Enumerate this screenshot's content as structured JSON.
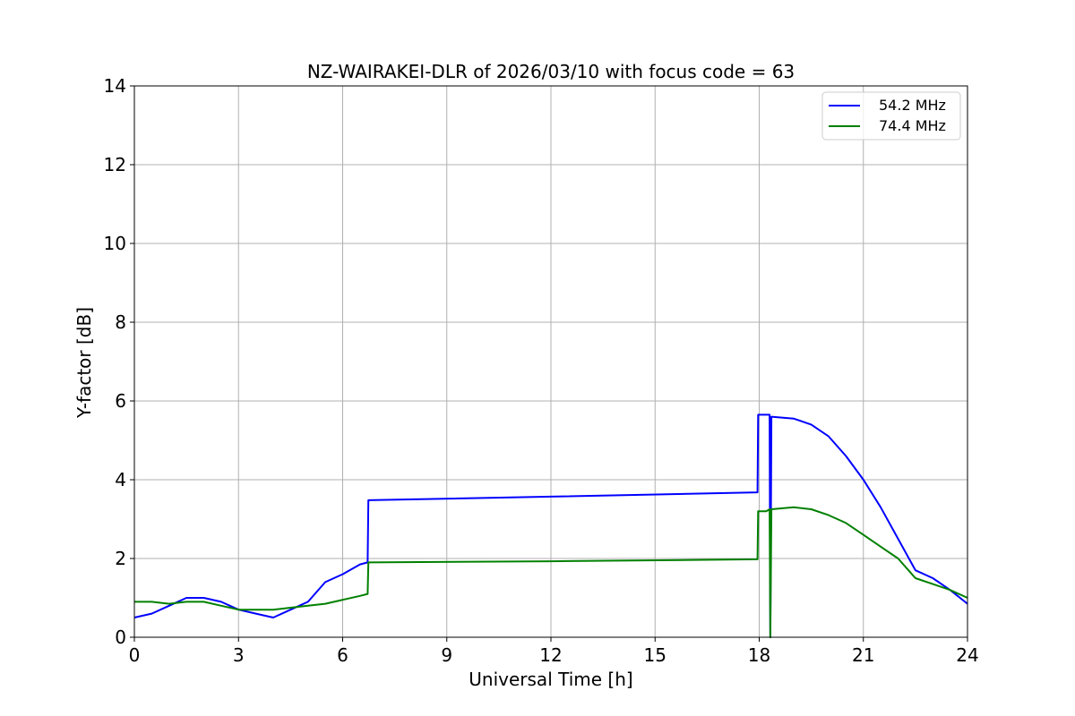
{
  "chart_data": {
    "type": "line",
    "title": "NZ-WAIRAKEI-DLR of 2026/03/10 with focus code = 63",
    "xlabel": "Universal Time [h]",
    "ylabel": "Y-factor [dB]",
    "xlim": [
      0,
      24
    ],
    "ylim": [
      0,
      14
    ],
    "xticks": [
      0,
      3,
      6,
      9,
      12,
      15,
      18,
      21,
      24
    ],
    "yticks": [
      0,
      2,
      4,
      6,
      8,
      10,
      12,
      14
    ],
    "grid": true,
    "legend_position": "top-right",
    "series": [
      {
        "name": "54.2 MHz",
        "color": "#0000ff",
        "x": [
          0.0,
          0.5,
          1.0,
          1.5,
          2.0,
          2.5,
          3.0,
          3.5,
          4.0,
          4.5,
          5.0,
          5.5,
          6.0,
          6.5,
          6.72,
          6.74,
          12.0,
          17.95,
          17.97,
          18.2,
          18.3,
          18.32,
          18.35,
          19.0,
          19.5,
          20.0,
          20.5,
          21.0,
          21.5,
          22.0,
          22.5,
          23.0,
          23.5,
          24.0
        ],
        "y": [
          0.5,
          0.6,
          0.8,
          1.0,
          1.0,
          0.9,
          0.7,
          0.6,
          0.5,
          0.7,
          0.9,
          1.4,
          1.6,
          1.85,
          1.9,
          3.48,
          3.57,
          3.68,
          5.65,
          5.65,
          5.65,
          0.0,
          5.6,
          5.55,
          5.4,
          5.1,
          4.6,
          4.0,
          3.3,
          2.5,
          1.7,
          1.5,
          1.2,
          0.85
        ]
      },
      {
        "name": "74.4 MHz",
        "color": "#008000",
        "x": [
          0.0,
          0.5,
          1.0,
          1.5,
          2.0,
          2.5,
          3.0,
          3.5,
          4.0,
          4.5,
          5.0,
          5.5,
          6.0,
          6.5,
          6.72,
          6.74,
          12.0,
          17.95,
          17.97,
          18.2,
          18.3,
          18.32,
          18.35,
          19.0,
          19.5,
          20.0,
          20.5,
          21.0,
          21.5,
          22.0,
          22.5,
          23.0,
          23.5,
          24.0
        ],
        "y": [
          0.9,
          0.9,
          0.85,
          0.9,
          0.9,
          0.8,
          0.7,
          0.7,
          0.7,
          0.75,
          0.8,
          0.85,
          0.95,
          1.05,
          1.1,
          1.9,
          1.93,
          1.98,
          3.2,
          3.2,
          3.25,
          0.0,
          3.25,
          3.3,
          3.25,
          3.1,
          2.9,
          2.6,
          2.3,
          2.0,
          1.5,
          1.35,
          1.2,
          1.0
        ]
      }
    ]
  }
}
